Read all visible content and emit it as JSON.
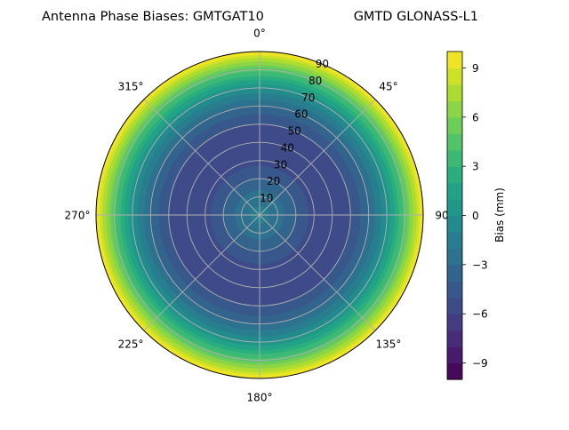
{
  "header": {
    "title_left": "Antenna Phase Biases: GMTGAT10",
    "title_right": "GMTD GLONASS-L1"
  },
  "chart_data": {
    "type": "heatmap",
    "projection": "polar",
    "theta_direction": "clockwise",
    "theta_zero": "top",
    "angle_tick_labels": [
      "0°",
      "45°",
      "90",
      "135°",
      "180°",
      "225°",
      "270°",
      "315°"
    ],
    "angle_tick_values": [
      0,
      45,
      90,
      135,
      180,
      225,
      270,
      315
    ],
    "radial_tick_labels": [
      "10",
      "20",
      "30",
      "40",
      "50",
      "60",
      "70",
      "80",
      "90"
    ],
    "radial_tick_values": [
      10,
      20,
      30,
      40,
      50,
      60,
      70,
      80,
      90
    ],
    "rlim": [
      0,
      90
    ],
    "grid": true,
    "colormap": "viridis",
    "colorbar": {
      "label": "Bias (mm)",
      "range": [
        -10,
        10
      ],
      "levels": 20,
      "tick_labels": [
        "9",
        "6",
        "3",
        "0",
        "−3",
        "−6",
        "−9"
      ],
      "tick_values": [
        9,
        6,
        3,
        0,
        -3,
        -6,
        -9
      ]
    },
    "bias_profile_by_radius": {
      "radius": [
        0,
        10,
        20,
        30,
        40,
        50,
        60,
        70,
        80,
        90
      ],
      "bias_mm": [
        -1.5,
        -2.5,
        -4.0,
        -5.4,
        -5.8,
        -5.0,
        -3.2,
        0.0,
        4.5,
        10.0
      ]
    }
  }
}
